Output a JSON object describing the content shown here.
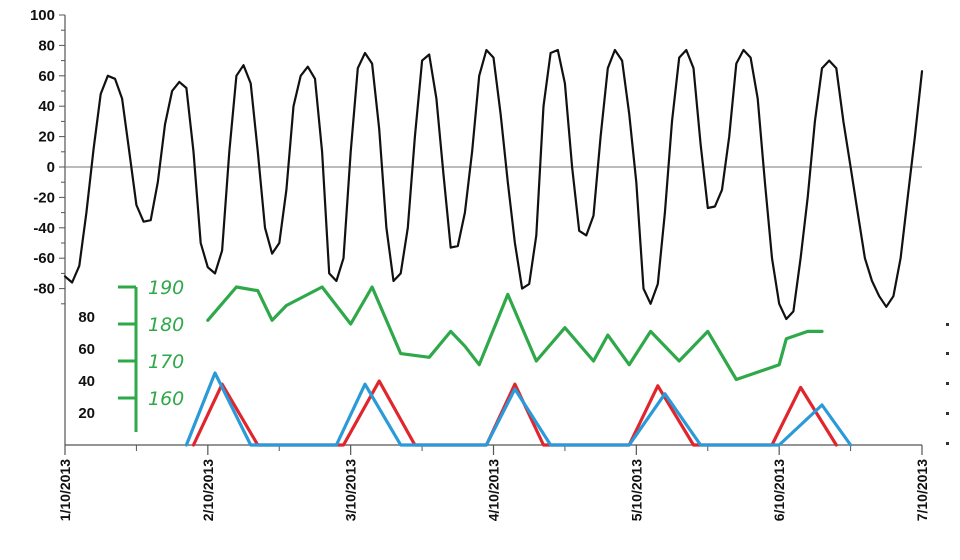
{
  "chart_data": {
    "type": "line",
    "title": "",
    "xlabel": "",
    "ylabel": "",
    "x_tick_labels": [
      "1/10/2013",
      "2/10/2013",
      "3/10/2013",
      "4/10/2013",
      "5/10/2013",
      "6/10/2013",
      "7/10/2013"
    ],
    "primary_axis": {
      "ylim": [
        -100,
        100
      ],
      "ticks": [
        "100",
        "80",
        "60",
        "40",
        "20",
        "0",
        "-20",
        "-40",
        "-60",
        "-80"
      ]
    },
    "lower_left_axis_ticks": [
      "80",
      "60",
      "40",
      "20"
    ],
    "green_axis_ticks": [
      "190",
      "180",
      "170",
      "160"
    ],
    "series": [
      {
        "color": "#111111",
        "axis": "primary",
        "x": [
          0.0,
          0.05,
          0.1,
          0.15,
          0.2,
          0.25,
          0.3,
          0.35,
          0.4,
          0.45,
          0.5,
          0.55,
          0.6,
          0.65,
          0.7,
          0.75,
          0.8,
          0.85,
          0.9,
          0.95,
          1.0,
          1.05,
          1.1,
          1.15,
          1.2,
          1.25,
          1.3,
          1.35,
          1.4,
          1.45,
          1.5,
          1.55,
          1.6,
          1.65,
          1.7,
          1.75,
          1.8,
          1.85,
          1.9,
          1.95,
          2.0,
          2.05,
          2.1,
          2.15,
          2.2,
          2.25,
          2.3,
          2.35,
          2.4,
          2.45,
          2.5,
          2.55,
          2.6,
          2.65,
          2.7,
          2.75,
          2.8,
          2.85,
          2.9,
          2.95,
          3.0,
          3.05,
          3.1,
          3.15,
          3.2,
          3.25,
          3.3,
          3.35,
          3.4,
          3.45,
          3.5,
          3.55,
          3.6,
          3.65,
          3.7,
          3.75,
          3.8,
          3.85,
          3.9,
          3.95,
          4.0,
          4.05,
          4.1,
          4.15,
          4.2,
          4.25,
          4.3,
          4.35,
          4.4,
          4.45,
          4.5,
          4.55,
          4.6,
          4.65,
          4.7,
          4.75,
          4.8,
          4.85,
          4.9,
          4.95,
          5.0,
          5.05,
          5.1,
          5.15,
          5.2,
          5.25,
          5.3,
          5.35,
          5.4,
          5.45,
          5.5,
          5.55,
          5.6,
          5.65,
          5.7,
          5.75,
          5.8,
          5.85,
          5.9,
          5.95,
          6.0
        ],
        "y": [
          -72,
          -76,
          -65,
          -30,
          12,
          48,
          60,
          58,
          45,
          10,
          -25,
          -36,
          -35,
          -10,
          28,
          50,
          56,
          52,
          10,
          -50,
          -66,
          -70,
          -55,
          10,
          60,
          67,
          55,
          10,
          -40,
          -57,
          -50,
          -15,
          40,
          60,
          66,
          58,
          10,
          -70,
          -75,
          -60,
          10,
          65,
          75,
          68,
          25,
          -40,
          -75,
          -70,
          -40,
          20,
          70,
          74,
          45,
          -5,
          -53,
          -52,
          -30,
          10,
          60,
          77,
          72,
          35,
          -10,
          -50,
          -80,
          -77,
          -45,
          40,
          75,
          77,
          55,
          0,
          -42,
          -45,
          -32,
          20,
          65,
          77,
          70,
          35,
          -10,
          -80,
          -90,
          -77,
          -30,
          30,
          72,
          77,
          65,
          15,
          -27,
          -26,
          -15,
          20,
          68,
          77,
          72,
          45,
          -10,
          -60,
          -90,
          -100,
          -95,
          -60,
          -20,
          30,
          65,
          70,
          65,
          30,
          0,
          -30,
          -60,
          -75,
          -85,
          -92,
          -85,
          -60,
          -20,
          20,
          63
        ]
      },
      {
        "color": "#2fa84a",
        "axis": "green",
        "x": [
          1.0,
          1.2,
          1.35,
          1.45,
          1.55,
          1.8,
          2.0,
          2.15,
          2.35,
          2.55,
          2.7,
          2.8,
          2.9,
          3.1,
          3.3,
          3.5,
          3.7,
          3.8,
          3.95,
          4.1,
          4.3,
          4.5,
          4.7,
          5.0,
          5.05,
          5.2,
          5.3
        ],
        "y": [
          181,
          190,
          189,
          181,
          185,
          190,
          180,
          190,
          172,
          171,
          178,
          174,
          169,
          188,
          170,
          179,
          170,
          177,
          169,
          178,
          170,
          178,
          165,
          169,
          176,
          178,
          178
        ]
      },
      {
        "color": "#e0262c",
        "axis": "lower",
        "x": [
          0.9,
          1.1,
          1.35,
          1.95,
          2.2,
          2.45,
          2.95,
          3.15,
          3.35,
          3.95,
          4.15,
          4.4,
          4.95,
          5.15,
          5.4
        ],
        "y": [
          0,
          38,
          0,
          0,
          40,
          0,
          0,
          38,
          0,
          0,
          37,
          0,
          0,
          36,
          0
        ]
      },
      {
        "color": "#2b9ad8",
        "axis": "lower",
        "x": [
          0.85,
          1.05,
          1.3,
          1.9,
          2.1,
          2.35,
          2.95,
          3.15,
          3.4,
          3.95,
          4.2,
          4.45,
          5.0,
          5.3,
          5.5
        ],
        "y": [
          0,
          45,
          0,
          0,
          38,
          0,
          0,
          35,
          0,
          0,
          32,
          0,
          0,
          25,
          0
        ]
      }
    ],
    "grid": false,
    "legend": "none"
  }
}
